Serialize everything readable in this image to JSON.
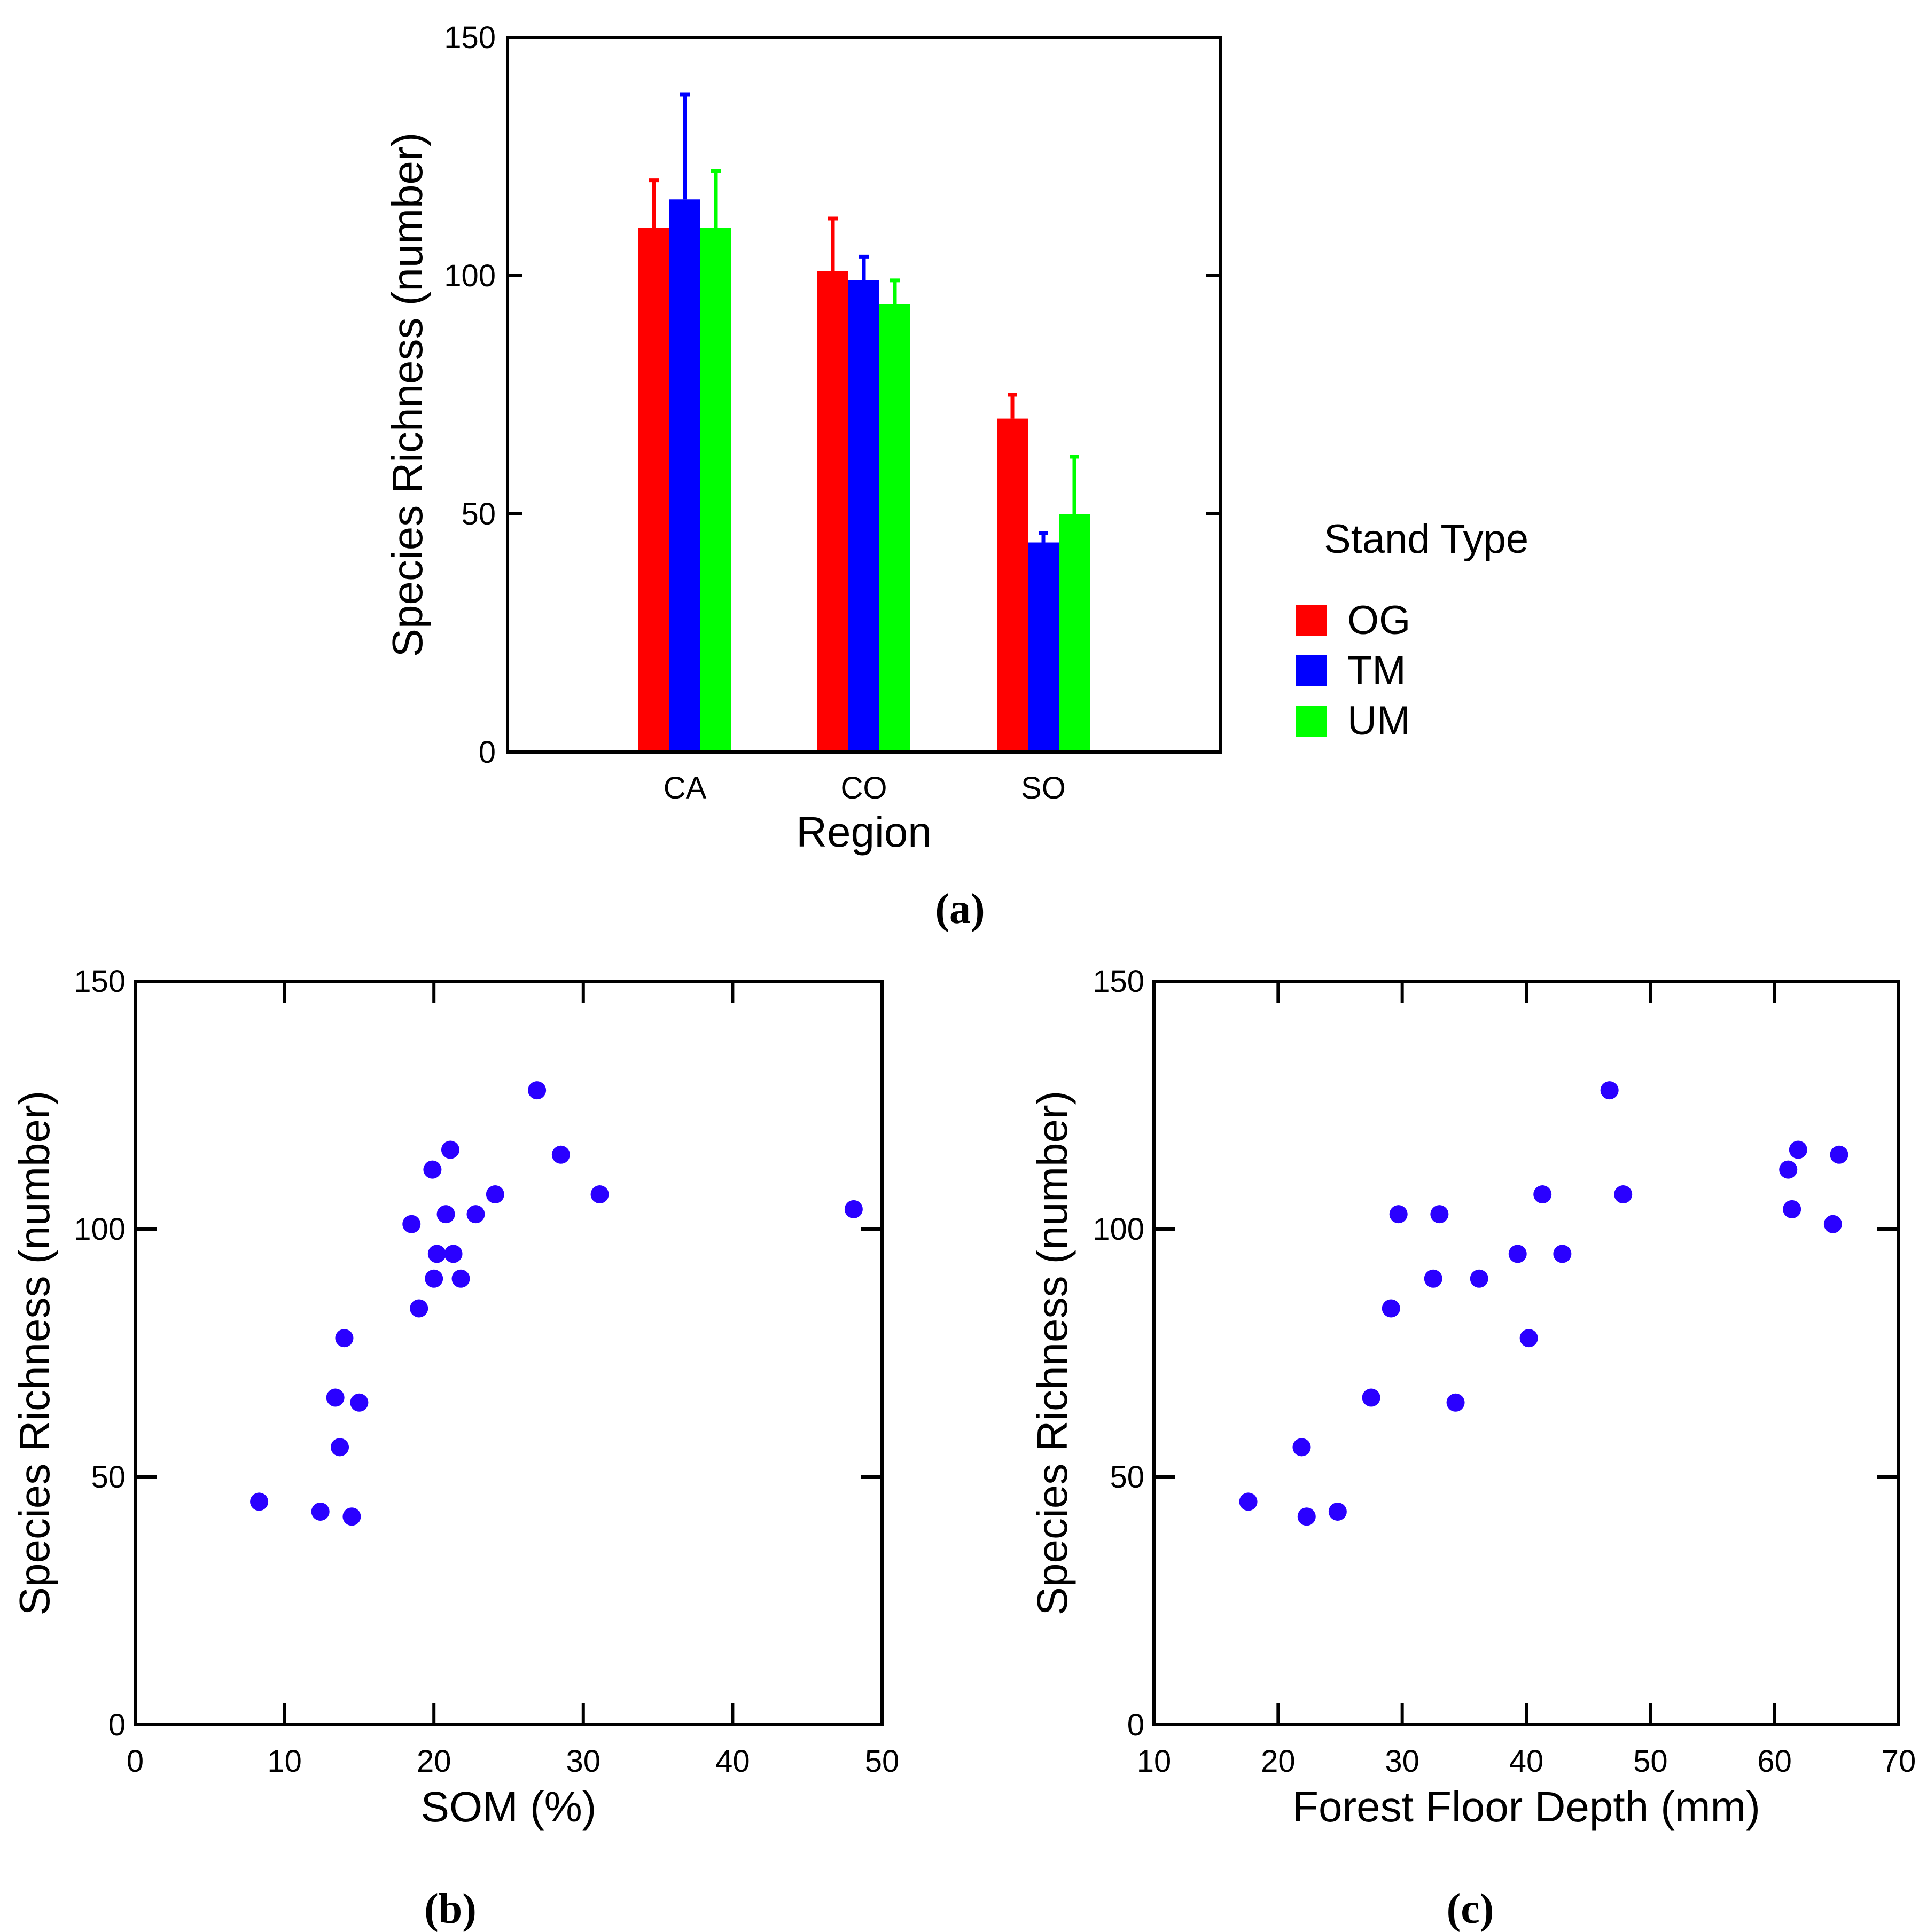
{
  "chart_data": [
    {
      "type": "bar",
      "panel_label": "(a)",
      "xlabel": "Region",
      "ylabel": "Species Richness (number)",
      "ylim": [
        0,
        150
      ],
      "yticks": [
        "0",
        "50",
        "100",
        "150"
      ],
      "categories": [
        "CA",
        "CO",
        "SO"
      ],
      "legend_title": "Stand Type",
      "series": [
        {
          "name": "OG",
          "color": "#ff0000",
          "values": [
            110,
            101,
            70
          ],
          "errors": [
            10,
            11,
            5
          ]
        },
        {
          "name": "TM",
          "color": "#0000ff",
          "values": [
            116,
            99,
            44
          ],
          "errors": [
            22,
            5,
            2
          ]
        },
        {
          "name": "UM",
          "color": "#00ff00",
          "values": [
            110,
            94,
            50
          ],
          "errors": [
            12,
            5,
            12
          ]
        }
      ]
    },
    {
      "type": "scatter",
      "panel_label": "(b)",
      "xlabel": "SOM (%)",
      "ylabel": "Species Richness (number)",
      "xlim": [
        0,
        50
      ],
      "ylim": [
        0,
        150
      ],
      "xticks": [
        "0",
        "10",
        "20",
        "30",
        "40",
        "50"
      ],
      "yticks": [
        "0",
        "50",
        "100",
        "150"
      ],
      "color": "#2a00ff",
      "points": [
        [
          8.3,
          45
        ],
        [
          12.4,
          43
        ],
        [
          14.5,
          42
        ],
        [
          13.4,
          66
        ],
        [
          13.7,
          56
        ],
        [
          14.0,
          78
        ],
        [
          15.0,
          65
        ],
        [
          18.5,
          101
        ],
        [
          19.0,
          84
        ],
        [
          19.9,
          112
        ],
        [
          20.0,
          90
        ],
        [
          20.2,
          95
        ],
        [
          20.8,
          103
        ],
        [
          21.1,
          116
        ],
        [
          21.3,
          95
        ],
        [
          21.8,
          90
        ],
        [
          22.8,
          103
        ],
        [
          24.1,
          107
        ],
        [
          26.9,
          128
        ],
        [
          28.5,
          115
        ],
        [
          31.1,
          107
        ],
        [
          48.1,
          104
        ]
      ]
    },
    {
      "type": "scatter",
      "panel_label": "(c)",
      "xlabel": "Forest Floor Depth (mm)",
      "ylabel": "Species Richness (number)",
      "xlim": [
        10,
        70
      ],
      "ylim": [
        0,
        150
      ],
      "xticks": [
        "10",
        "20",
        "30",
        "40",
        "50",
        "60",
        "70"
      ],
      "yticks": [
        "0",
        "50",
        "100",
        "150"
      ],
      "color": "#2a00ff",
      "points": [
        [
          17.6,
          45
        ],
        [
          21.9,
          56
        ],
        [
          22.3,
          42
        ],
        [
          24.8,
          43
        ],
        [
          27.5,
          66
        ],
        [
          29.1,
          84
        ],
        [
          29.7,
          103
        ],
        [
          32.5,
          90
        ],
        [
          33.0,
          103
        ],
        [
          34.3,
          65
        ],
        [
          36.2,
          90
        ],
        [
          39.3,
          95
        ],
        [
          40.2,
          78
        ],
        [
          41.3,
          107
        ],
        [
          42.9,
          95
        ],
        [
          46.7,
          128
        ],
        [
          47.8,
          107
        ],
        [
          61.1,
          112
        ],
        [
          61.4,
          104
        ],
        [
          61.9,
          116
        ],
        [
          64.7,
          101
        ],
        [
          65.2,
          115
        ]
      ]
    }
  ]
}
